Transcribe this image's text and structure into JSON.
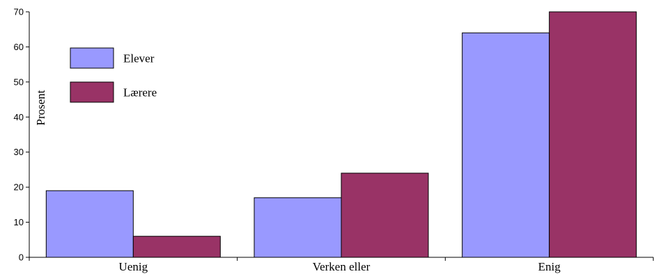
{
  "chart_data": {
    "type": "bar",
    "title": "",
    "xlabel": "",
    "ylabel": "Prosent",
    "categories": [
      "Uenig",
      "Verken eller",
      "Enig"
    ],
    "series": [
      {
        "name": "Elever",
        "values": [
          19,
          17,
          64
        ],
        "color": "#9999ff"
      },
      {
        "name": "Lærere",
        "values": [
          6,
          24,
          70
        ],
        "color": "#993366"
      }
    ],
    "ylim": [
      0,
      70
    ],
    "yticks": [
      0,
      10,
      20,
      30,
      40,
      50,
      60,
      70
    ],
    "grid": false,
    "legend_position": "top-left"
  }
}
